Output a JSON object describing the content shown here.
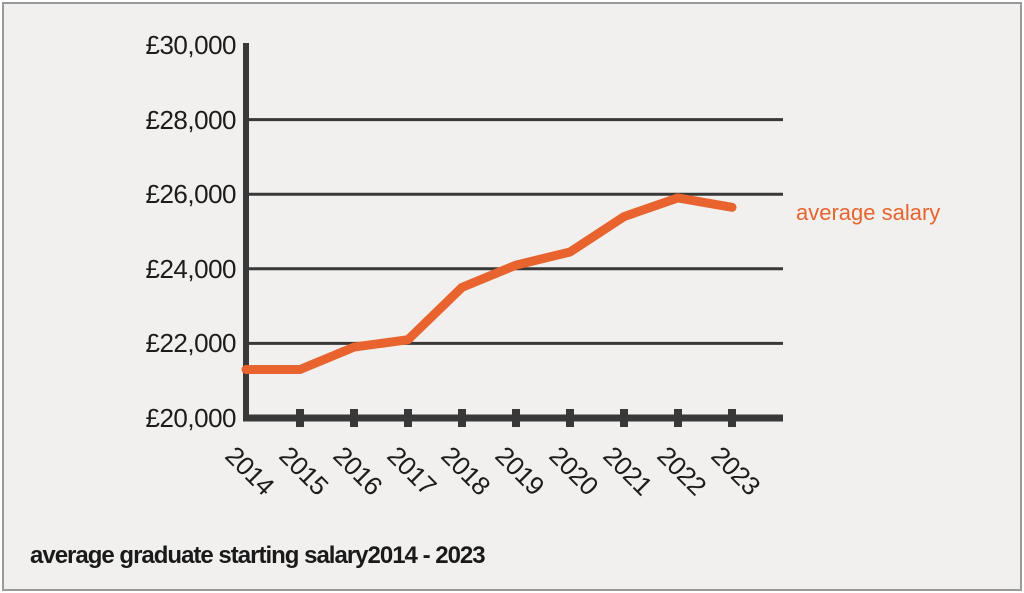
{
  "panel": {
    "background_color": "#f1f0ee",
    "border_color": "#9a9a9a"
  },
  "chart_data": {
    "type": "line",
    "title": "average graduate starting salary2014 - 2023",
    "legend": "average salary",
    "legend_position": "right of last data point",
    "categories": [
      "2014",
      "2015",
      "2016",
      "2017",
      "2018",
      "2019",
      "2020",
      "2021",
      "2022",
      "2023"
    ],
    "series": [
      {
        "name": "average salary",
        "values": [
          21300,
          21300,
          21900,
          22100,
          23500,
          24100,
          24450,
          25400,
          25900,
          25650
        ]
      }
    ],
    "xlabel": "",
    "ylabel": "",
    "ylim": [
      20000,
      30000
    ],
    "y_ticks": [
      20000,
      22000,
      24000,
      26000,
      28000,
      30000
    ],
    "y_tick_labels": [
      "£20,000",
      "£22,000",
      "£24,000",
      "£26,000",
      "£28,000",
      "£30,000"
    ],
    "grid": "horizontal gridlines at inner y ticks",
    "colors": {
      "line": "#e8632d",
      "legend_text": "#e8632d",
      "axis": "#383838",
      "grid_line": "#383838",
      "tick_text": "#1c1c1c",
      "title_text": "#1a1a1a"
    }
  }
}
